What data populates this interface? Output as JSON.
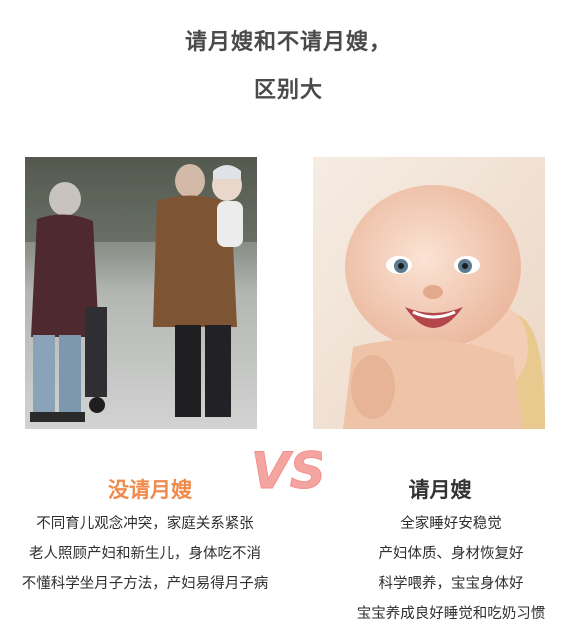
{
  "header": {
    "line1": "请月嫂和不请月嫂，",
    "line2": "区别大"
  },
  "vs_label": "VS",
  "colors": {
    "heading": "#4a4a4a",
    "left_accent": "#f08a4b",
    "vs_pink": "#f5a5a1",
    "body_text": "#2f2f2f"
  },
  "left": {
    "title": "没请月嫂",
    "items": [
      "不同育儿观念冲突，家庭关系紧张",
      "老人照顾产妇和新生儿，身体吃不消",
      "不懂科学坐月子方法，产妇易得月子病"
    ]
  },
  "right": {
    "title": "请月嫂",
    "items": [
      "全家睡好安稳觉",
      "产妇体质、身材恢复好",
      "科学喂养，宝宝身体好",
      "宝宝养成良好睡觉和吃奶习惯"
    ]
  }
}
